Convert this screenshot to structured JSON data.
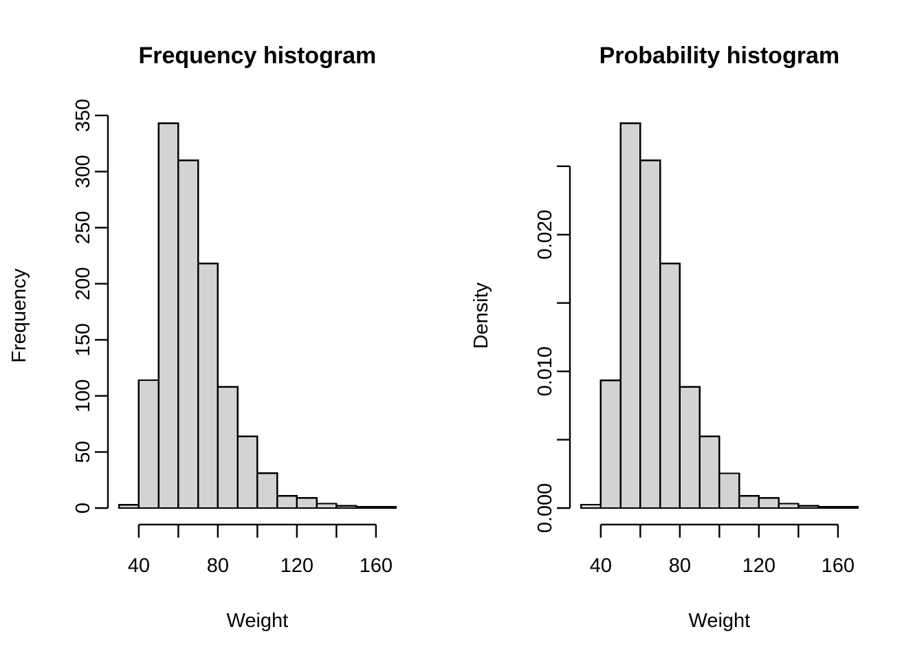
{
  "figure": {
    "background_color": "#FFFFFF",
    "bar_fill_color": "#D3D3D3",
    "bar_border_color": "#000000",
    "axis_color": "#000000",
    "text_color": "#000000"
  },
  "chart_data": [
    {
      "type": "bar",
      "variant": "histogram",
      "title": "Frequency histogram",
      "xlabel": "Weight",
      "ylabel": "Frequency",
      "bin_edges": [
        30,
        40,
        50,
        60,
        70,
        80,
        90,
        100,
        110,
        120,
        130,
        140,
        150,
        160,
        170
      ],
      "values": [
        3,
        114,
        343,
        310,
        218,
        108,
        64,
        31,
        11,
        9,
        4,
        2,
        1,
        1
      ],
      "xlim": [
        30,
        170
      ],
      "ylim": [
        0,
        350
      ],
      "x_ticks": [
        40,
        60,
        80,
        100,
        120,
        140,
        160
      ],
      "x_tick_labels": [
        "40",
        "",
        "80",
        "",
        "120",
        "",
        "160"
      ],
      "y_ticks": [
        0,
        50,
        100,
        150,
        200,
        250,
        300,
        350
      ],
      "y_tick_labels": [
        "0",
        "50",
        "100",
        "150",
        "200",
        "250",
        "300",
        "350"
      ],
      "grid": "off",
      "legend": "none"
    },
    {
      "type": "bar",
      "variant": "histogram",
      "title": "Probability histogram",
      "xlabel": "Weight",
      "ylabel": "Density",
      "bin_edges": [
        30,
        40,
        50,
        60,
        70,
        80,
        90,
        100,
        110,
        120,
        130,
        140,
        150,
        160,
        170
      ],
      "values": [
        0.00025,
        0.00935,
        0.02814,
        0.02543,
        0.01788,
        0.00886,
        0.00525,
        0.00254,
        0.0009,
        0.00074,
        0.00033,
        0.00016,
        8e-05,
        8e-05
      ],
      "xlim": [
        30,
        170
      ],
      "ylim": [
        0,
        0.025
      ],
      "x_ticks": [
        40,
        60,
        80,
        100,
        120,
        140,
        160
      ],
      "x_tick_labels": [
        "40",
        "",
        "80",
        "",
        "120",
        "",
        "160"
      ],
      "y_ticks": [
        0,
        0.005,
        0.01,
        0.015,
        0.02,
        0.025
      ],
      "y_tick_labels": [
        "0.000",
        "",
        "0.010",
        "",
        "0.020",
        ""
      ],
      "grid": "off",
      "legend": "none"
    }
  ]
}
